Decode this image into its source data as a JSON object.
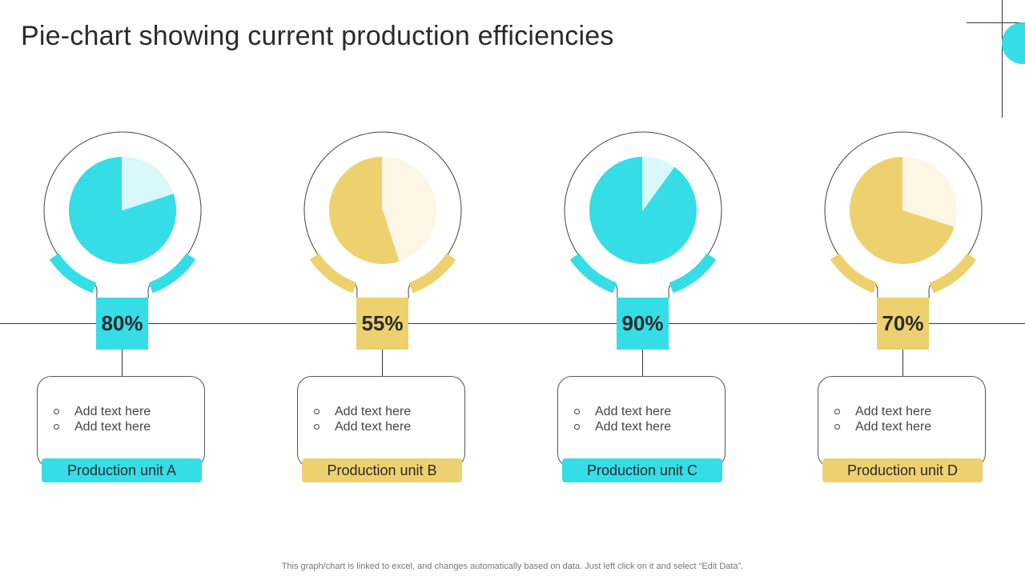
{
  "title": "Pie-chart showing current production efficiencies",
  "footer": "This graph/chart is linked to excel, and changes automatically based on data. Just left click on it and select “Edit Data”.",
  "colors": {
    "cyan": "#35dde7",
    "cyan_light": "#d8f8fa",
    "yellow": "#eed16f",
    "yellow_light": "#fdf6e4"
  },
  "chart_data": {
    "type": "pie",
    "title": "Pie-chart showing current production efficiencies",
    "series": [
      {
        "name": "Production unit A",
        "value": 80,
        "display": "80%",
        "color_key": "cyan",
        "bullets": [
          "Add text here",
          "Add text here"
        ]
      },
      {
        "name": "Production unit B",
        "value": 55,
        "display": "55%",
        "color_key": "yellow",
        "bullets": [
          "Add text here",
          "Add text here"
        ]
      },
      {
        "name": "Production unit C",
        "value": 90,
        "display": "90%",
        "color_key": "cyan",
        "bullets": [
          "Add text here",
          "Add text here"
        ]
      },
      {
        "name": "Production unit D",
        "value": 70,
        "display": "70%",
        "color_key": "yellow",
        "bullets": [
          "Add text here",
          "Add text here"
        ]
      }
    ]
  }
}
